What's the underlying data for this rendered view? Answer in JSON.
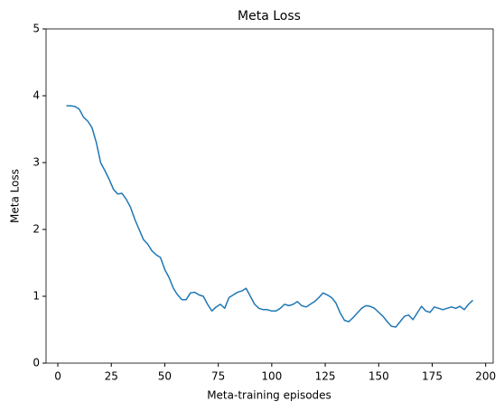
{
  "chart_data": {
    "type": "line",
    "title": "Meta Loss",
    "xlabel": "Meta-training episodes",
    "ylabel": "Meta Loss",
    "x": [
      4,
      6,
      8,
      10,
      12,
      14,
      16,
      18,
      20,
      22,
      24,
      26,
      28,
      30,
      32,
      34,
      36,
      38,
      40,
      42,
      44,
      46,
      48,
      50,
      52,
      54,
      56,
      58,
      60,
      62,
      64,
      66,
      68,
      70,
      72,
      74,
      76,
      78,
      80,
      82,
      84,
      86,
      88,
      90,
      92,
      94,
      96,
      98,
      100,
      102,
      104,
      106,
      108,
      110,
      112,
      114,
      116,
      118,
      120,
      122,
      124,
      126,
      128,
      130,
      132,
      134,
      136,
      138,
      140,
      142,
      144,
      146,
      148,
      150,
      152,
      154,
      156,
      158,
      160,
      162,
      164,
      166,
      168,
      170,
      172,
      174,
      176,
      178,
      180,
      182,
      184,
      186,
      188,
      190,
      192,
      194
    ],
    "series": [
      {
        "name": "Meta Loss",
        "color": "#1f77b4",
        "values": [
          3.85,
          3.85,
          3.84,
          3.8,
          3.68,
          3.62,
          3.52,
          3.3,
          3.0,
          2.88,
          2.75,
          2.6,
          2.53,
          2.54,
          2.45,
          2.33,
          2.15,
          2.0,
          1.85,
          1.78,
          1.68,
          1.62,
          1.58,
          1.4,
          1.28,
          1.12,
          1.02,
          0.95,
          0.95,
          1.05,
          1.06,
          1.02,
          1.0,
          0.88,
          0.78,
          0.84,
          0.88,
          0.82,
          0.98,
          1.02,
          1.06,
          1.08,
          1.12,
          1.0,
          0.88,
          0.82,
          0.8,
          0.8,
          0.78,
          0.78,
          0.82,
          0.88,
          0.86,
          0.88,
          0.92,
          0.86,
          0.84,
          0.88,
          0.92,
          0.98,
          1.05,
          1.02,
          0.98,
          0.9,
          0.75,
          0.64,
          0.62,
          0.68,
          0.75,
          0.82,
          0.86,
          0.85,
          0.82,
          0.76,
          0.7,
          0.62,
          0.55,
          0.54,
          0.62,
          0.7,
          0.72,
          0.65,
          0.75,
          0.85,
          0.78,
          0.76,
          0.84,
          0.82,
          0.8,
          0.82,
          0.84,
          0.82,
          0.85,
          0.8,
          0.88,
          0.94
        ]
      }
    ],
    "xlim": [
      -5.5,
      203.5
    ],
    "ylim": [
      0,
      5
    ],
    "xticks": [
      0,
      25,
      50,
      75,
      100,
      125,
      150,
      175,
      200
    ],
    "yticks": [
      0,
      1,
      2,
      3,
      4,
      5
    ]
  }
}
